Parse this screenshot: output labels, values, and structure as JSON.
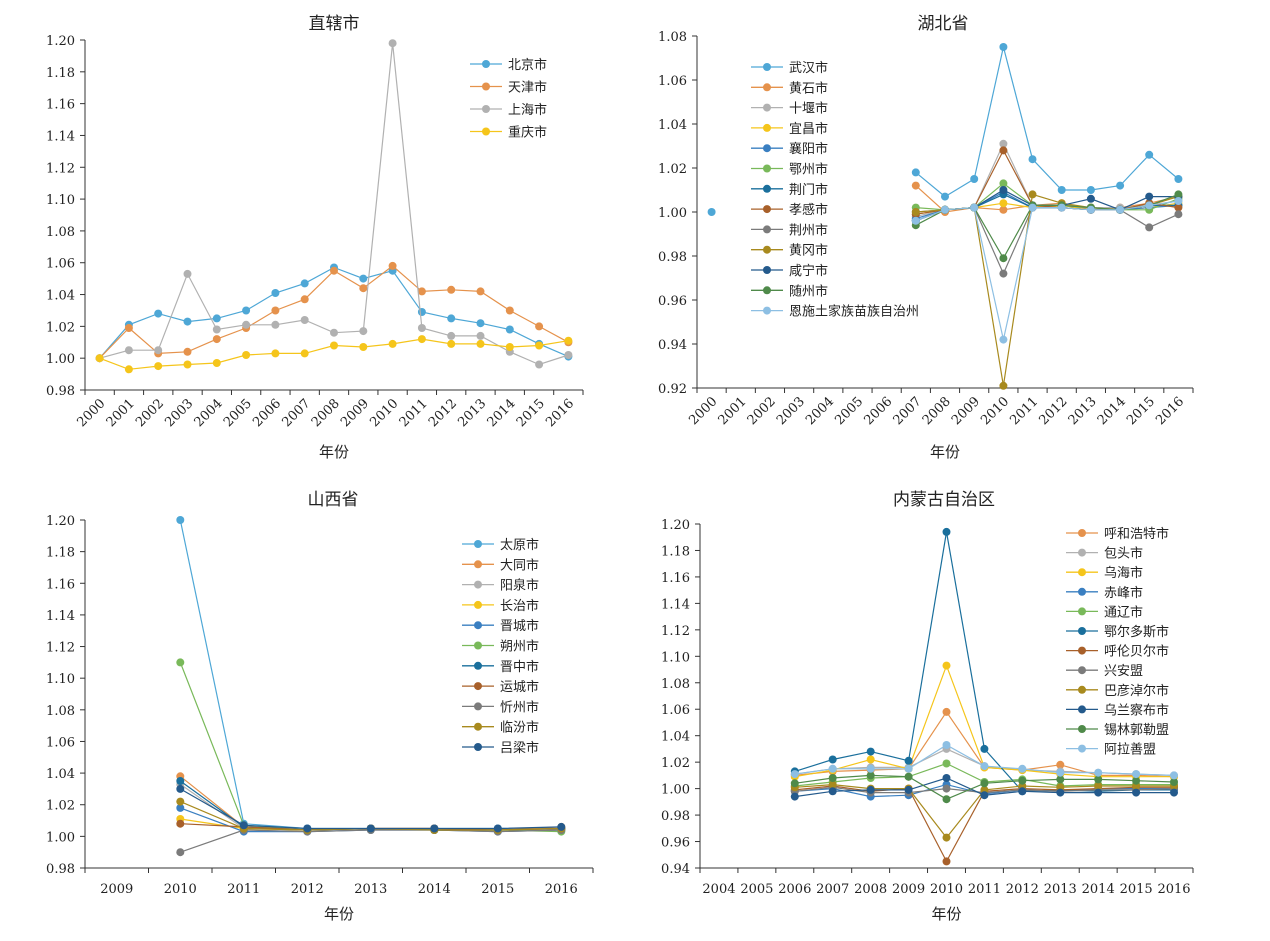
{
  "chart_data": [
    {
      "type": "line",
      "title": "直辖市",
      "xlabel": "年份",
      "ylabel": "",
      "ylim": [
        0.98,
        1.2
      ],
      "yticks": [
        "0.98",
        "1.00",
        "1.02",
        "1.04",
        "1.06",
        "1.08",
        "1.10",
        "1.12",
        "1.14",
        "1.16",
        "1.18",
        "1.20"
      ],
      "categories": [
        "2000",
        "2001",
        "2002",
        "2003",
        "2004",
        "2005",
        "2006",
        "2007",
        "2008",
        "2009",
        "2010",
        "2011",
        "2012",
        "2013",
        "2014",
        "2015",
        "2016"
      ],
      "legend_position": "top-right",
      "series": [
        {
          "name": "北京市",
          "color": "#4ea7d6",
          "values": [
            1.0,
            1.021,
            1.028,
            1.023,
            1.025,
            1.03,
            1.041,
            1.047,
            1.057,
            1.05,
            1.055,
            1.029,
            1.025,
            1.022,
            1.018,
            1.009,
            1.001
          ]
        },
        {
          "name": "天津市",
          "color": "#e5924c",
          "values": [
            1.0,
            1.019,
            1.003,
            1.004,
            1.012,
            1.019,
            1.03,
            1.037,
            1.055,
            1.044,
            1.058,
            1.042,
            1.043,
            1.042,
            1.03,
            1.02,
            1.01
          ]
        },
        {
          "name": "上海市",
          "color": "#b1b1b1",
          "values": [
            1.0,
            1.005,
            1.005,
            1.053,
            1.018,
            1.021,
            1.021,
            1.024,
            1.016,
            1.017,
            1.198,
            1.019,
            1.014,
            1.014,
            1.004,
            0.996,
            1.002
          ]
        },
        {
          "name": "重庆市",
          "color": "#f5c51b",
          "values": [
            1.0,
            0.993,
            0.995,
            0.996,
            0.997,
            1.002,
            1.003,
            1.003,
            1.008,
            1.007,
            1.009,
            1.012,
            1.009,
            1.009,
            1.007,
            1.008,
            1.011
          ]
        }
      ]
    },
    {
      "type": "line",
      "title": "湖北省",
      "xlabel": "年份",
      "ylabel": "",
      "ylim": [
        0.92,
        1.08
      ],
      "yticks": [
        "0.92",
        "0.94",
        "0.96",
        "0.98",
        "1.00",
        "1.02",
        "1.04",
        "1.06",
        "1.08"
      ],
      "categories": [
        "2000",
        "2001",
        "2002",
        "2003",
        "2004",
        "2005",
        "2006",
        "2007",
        "2008",
        "2009",
        "2010",
        "2011",
        "2012",
        "2013",
        "2014",
        "2015",
        "2016"
      ],
      "legend_position": "top-left",
      "series": [
        {
          "name": "武汉市",
          "color": "#4ea7d6",
          "values": [
            1.0,
            null,
            null,
            null,
            null,
            null,
            null,
            1.018,
            1.007,
            1.015,
            1.075,
            1.024,
            1.01,
            1.01,
            1.012,
            1.026,
            1.015
          ]
        },
        {
          "name": "黄石市",
          "color": "#e5924c",
          "values": [
            null,
            null,
            null,
            null,
            null,
            null,
            null,
            1.012,
            1.0,
            1.002,
            1.001,
            1.003,
            1.004,
            1.001,
            1.002,
            1.004,
            1.007
          ]
        },
        {
          "name": "十堰市",
          "color": "#b1b1b1",
          "values": [
            null,
            null,
            null,
            null,
            null,
            null,
            null,
            0.998,
            1.001,
            1.002,
            1.031,
            1.003,
            1.003,
            1.002,
            1.002,
            1.003,
            1.005
          ]
        },
        {
          "name": "宜昌市",
          "color": "#f5c51b",
          "values": [
            null,
            null,
            null,
            null,
            null,
            null,
            null,
            0.999,
            1.001,
            1.002,
            1.004,
            1.002,
            1.003,
            1.001,
            1.001,
            1.002,
            1.004
          ]
        },
        {
          "name": "襄阳市",
          "color": "#3a7fc1",
          "values": [
            null,
            null,
            null,
            null,
            null,
            null,
            null,
            0.997,
            1.001,
            1.002,
            1.009,
            1.002,
            1.002,
            1.001,
            1.001,
            1.002,
            1.003
          ]
        },
        {
          "name": "鄂州市",
          "color": "#79b95a",
          "values": [
            null,
            null,
            null,
            null,
            null,
            null,
            null,
            1.002,
            1.001,
            1.002,
            1.013,
            1.003,
            1.003,
            1.002,
            1.001,
            1.001,
            1.006
          ]
        },
        {
          "name": "荆门市",
          "color": "#1a6f9c",
          "values": [
            null,
            null,
            null,
            null,
            null,
            null,
            null,
            0.996,
            1.001,
            1.002,
            1.008,
            1.002,
            1.002,
            1.001,
            1.001,
            1.003,
            1.003
          ]
        },
        {
          "name": "孝感市",
          "color": "#a8602a",
          "values": [
            null,
            null,
            null,
            null,
            null,
            null,
            null,
            0.999,
            1.001,
            1.002,
            1.028,
            1.003,
            1.002,
            1.001,
            1.001,
            1.004,
            1.002
          ]
        },
        {
          "name": "荆州市",
          "color": "#7b7b7b",
          "values": [
            null,
            null,
            null,
            null,
            null,
            null,
            null,
            1.0,
            1.001,
            1.002,
            0.972,
            1.002,
            1.002,
            1.001,
            1.001,
            0.993,
            0.999
          ]
        },
        {
          "name": "黄冈市",
          "color": "#a88a1e",
          "values": [
            null,
            null,
            null,
            null,
            null,
            null,
            null,
            1.0,
            1.001,
            1.002,
            0.921,
            1.008,
            1.004,
            1.002,
            1.001,
            1.003,
            1.007
          ]
        },
        {
          "name": "咸宁市",
          "color": "#245a8c",
          "values": [
            null,
            null,
            null,
            null,
            null,
            null,
            null,
            0.996,
            1.001,
            1.002,
            1.01,
            1.003,
            1.003,
            1.006,
            1.001,
            1.007,
            1.007
          ]
        },
        {
          "name": "随州市",
          "color": "#4f8a4a",
          "values": [
            null,
            null,
            null,
            null,
            null,
            null,
            null,
            0.994,
            1.001,
            1.002,
            0.979,
            1.003,
            1.003,
            1.002,
            1.001,
            1.003,
            1.008
          ]
        },
        {
          "name": "恩施土家族苗族自治州",
          "color": "#8dbfe3",
          "values": [
            null,
            null,
            null,
            null,
            null,
            null,
            null,
            0.996,
            1.001,
            1.002,
            0.942,
            1.002,
            1.002,
            1.001,
            1.001,
            1.003,
            1.005
          ]
        }
      ]
    },
    {
      "type": "line",
      "title": "山西省",
      "xlabel": "年份",
      "ylabel": "",
      "ylim": [
        0.98,
        1.2
      ],
      "yticks": [
        "0.98",
        "1.00",
        "1.02",
        "1.04",
        "1.06",
        "1.08",
        "1.10",
        "1.12",
        "1.14",
        "1.16",
        "1.18",
        "1.20"
      ],
      "categories": [
        "2009",
        "2010",
        "2011",
        "2012",
        "2013",
        "2014",
        "2015",
        "2016"
      ],
      "legend_position": "top-right",
      "series": [
        {
          "name": "太原市",
          "color": "#4ea7d6",
          "values": [
            null,
            1.2,
            1.008,
            1.005,
            1.005,
            1.005,
            1.005,
            1.005
          ]
        },
        {
          "name": "大同市",
          "color": "#e5924c",
          "values": [
            null,
            1.038,
            1.006,
            1.004,
            1.005,
            1.005,
            1.004,
            1.006
          ]
        },
        {
          "name": "阳泉市",
          "color": "#b1b1b1",
          "values": [
            null,
            1.033,
            1.005,
            1.004,
            1.005,
            1.004,
            1.004,
            1.004
          ]
        },
        {
          "name": "长治市",
          "color": "#f5c51b",
          "values": [
            null,
            1.011,
            1.005,
            1.004,
            1.005,
            1.004,
            1.004,
            1.005
          ]
        },
        {
          "name": "晋城市",
          "color": "#3a7fc1",
          "values": [
            null,
            1.018,
            1.003,
            1.003,
            1.004,
            1.004,
            1.003,
            1.004
          ]
        },
        {
          "name": "朔州市",
          "color": "#79b95a",
          "values": [
            null,
            1.11,
            1.007,
            1.004,
            1.005,
            1.004,
            1.004,
            1.003
          ]
        },
        {
          "name": "晋中市",
          "color": "#1a6f9c",
          "values": [
            null,
            1.035,
            1.006,
            1.004,
            1.005,
            1.004,
            1.004,
            1.005
          ]
        },
        {
          "name": "运城市",
          "color": "#a8602a",
          "values": [
            null,
            1.008,
            1.006,
            1.004,
            1.005,
            1.005,
            1.004,
            1.005
          ]
        },
        {
          "name": "忻州市",
          "color": "#7b7b7b",
          "values": [
            null,
            0.99,
            1.004,
            1.003,
            1.004,
            1.004,
            1.003,
            1.004
          ]
        },
        {
          "name": "临汾市",
          "color": "#a88a1e",
          "values": [
            null,
            1.022,
            1.005,
            1.004,
            1.005,
            1.004,
            1.004,
            1.005
          ]
        },
        {
          "name": "吕梁市",
          "color": "#245a8c",
          "values": [
            null,
            1.03,
            1.007,
            1.005,
            1.005,
            1.005,
            1.005,
            1.006
          ]
        }
      ]
    },
    {
      "type": "line",
      "title": "内蒙古自治区",
      "xlabel": "年份",
      "ylabel": "",
      "ylim": [
        0.94,
        1.2
      ],
      "yticks": [
        "0.94",
        "0.96",
        "0.98",
        "1.00",
        "1.02",
        "1.04",
        "1.06",
        "1.08",
        "1.10",
        "1.12",
        "1.14",
        "1.16",
        "1.18",
        "1.20"
      ],
      "categories": [
        "2004",
        "2005",
        "2006",
        "2007",
        "2008",
        "2009",
        "2010",
        "2011",
        "2012",
        "2013",
        "2014",
        "2015",
        "2016"
      ],
      "legend_position": "top-right",
      "series": [
        {
          "name": "呼和浩特市",
          "color": "#e5924c",
          "values": [
            null,
            null,
            1.01,
            1.013,
            1.014,
            1.015,
            1.058,
            1.016,
            1.014,
            1.018,
            1.01,
            1.01,
            1.009
          ]
        },
        {
          "name": "包头市",
          "color": "#b1b1b1",
          "values": [
            null,
            null,
            1.011,
            1.015,
            1.016,
            1.016,
            1.03,
            1.017,
            1.014,
            1.013,
            1.012,
            1.011,
            1.01
          ]
        },
        {
          "name": "乌海市",
          "color": "#f5c51b",
          "values": [
            null,
            null,
            1.009,
            1.014,
            1.022,
            1.015,
            1.093,
            1.016,
            1.014,
            1.011,
            1.009,
            1.009,
            1.009
          ]
        },
        {
          "name": "赤峰市",
          "color": "#3a7fc1",
          "values": [
            null,
            null,
            0.998,
            1.0,
            0.994,
            0.995,
            1.003,
            0.996,
            0.999,
            0.998,
            1.0,
            1.0,
            1.0
          ]
        },
        {
          "name": "通辽市",
          "color": "#79b95a",
          "values": [
            null,
            null,
            1.002,
            1.005,
            1.008,
            1.009,
            1.019,
            1.005,
            1.007,
            1.002,
            1.003,
            1.003,
            1.003
          ]
        },
        {
          "name": "鄂尔多斯市",
          "color": "#1a6f9c",
          "values": [
            null,
            null,
            1.013,
            1.022,
            1.028,
            1.021,
            1.194,
            1.03,
            0.998,
            0.999,
            0.998,
            0.999,
            0.999
          ]
        },
        {
          "name": "呼伦贝尔市",
          "color": "#a8602a",
          "values": [
            null,
            null,
            0.999,
            1.002,
            0.998,
            1.0,
            0.945,
            0.998,
            1.0,
            0.999,
            1.0,
            1.001,
            1.001
          ]
        },
        {
          "name": "兴安盟",
          "color": "#7b7b7b",
          "values": [
            null,
            null,
            0.998,
            1.001,
            0.997,
            0.997,
            1.0,
            0.997,
            0.999,
            0.998,
            0.999,
            0.999,
            1.0
          ]
        },
        {
          "name": "巴彦淖尔市",
          "color": "#a88a1e",
          "values": [
            null,
            null,
            1.001,
            1.003,
            1.0,
            1.0,
            0.963,
            0.999,
            1.002,
            1.001,
            1.002,
            1.002,
            1.002
          ]
        },
        {
          "name": "乌兰察布市",
          "color": "#245a8c",
          "values": [
            null,
            null,
            0.994,
            0.998,
            0.999,
            0.999,
            1.008,
            0.995,
            0.998,
            0.997,
            0.997,
            0.997,
            0.997
          ]
        },
        {
          "name": "锡林郭勒盟",
          "color": "#4f8a4a",
          "values": [
            null,
            null,
            1.004,
            1.008,
            1.01,
            1.009,
            0.992,
            1.004,
            1.006,
            1.007,
            1.007,
            1.006,
            1.005
          ]
        },
        {
          "name": "阿拉善盟",
          "color": "#8dbfe3",
          "values": [
            null,
            null,
            1.011,
            1.015,
            1.015,
            1.015,
            1.033,
            1.017,
            1.015,
            1.012,
            1.012,
            1.011,
            1.01
          ]
        }
      ]
    }
  ]
}
